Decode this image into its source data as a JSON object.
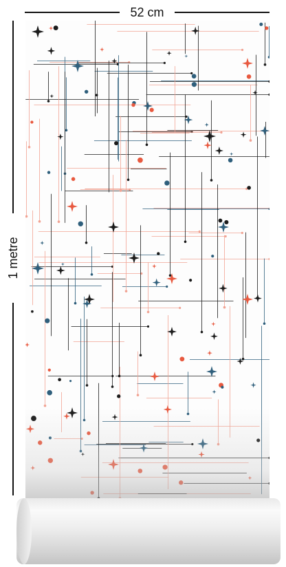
{
  "width_label": "52 cm",
  "height_label": "1 metre",
  "colors": {
    "black": "#1b1b1b",
    "blue": "#2f5f7c",
    "red": "#e8593f",
    "redLine": "#f1a393"
  }
}
